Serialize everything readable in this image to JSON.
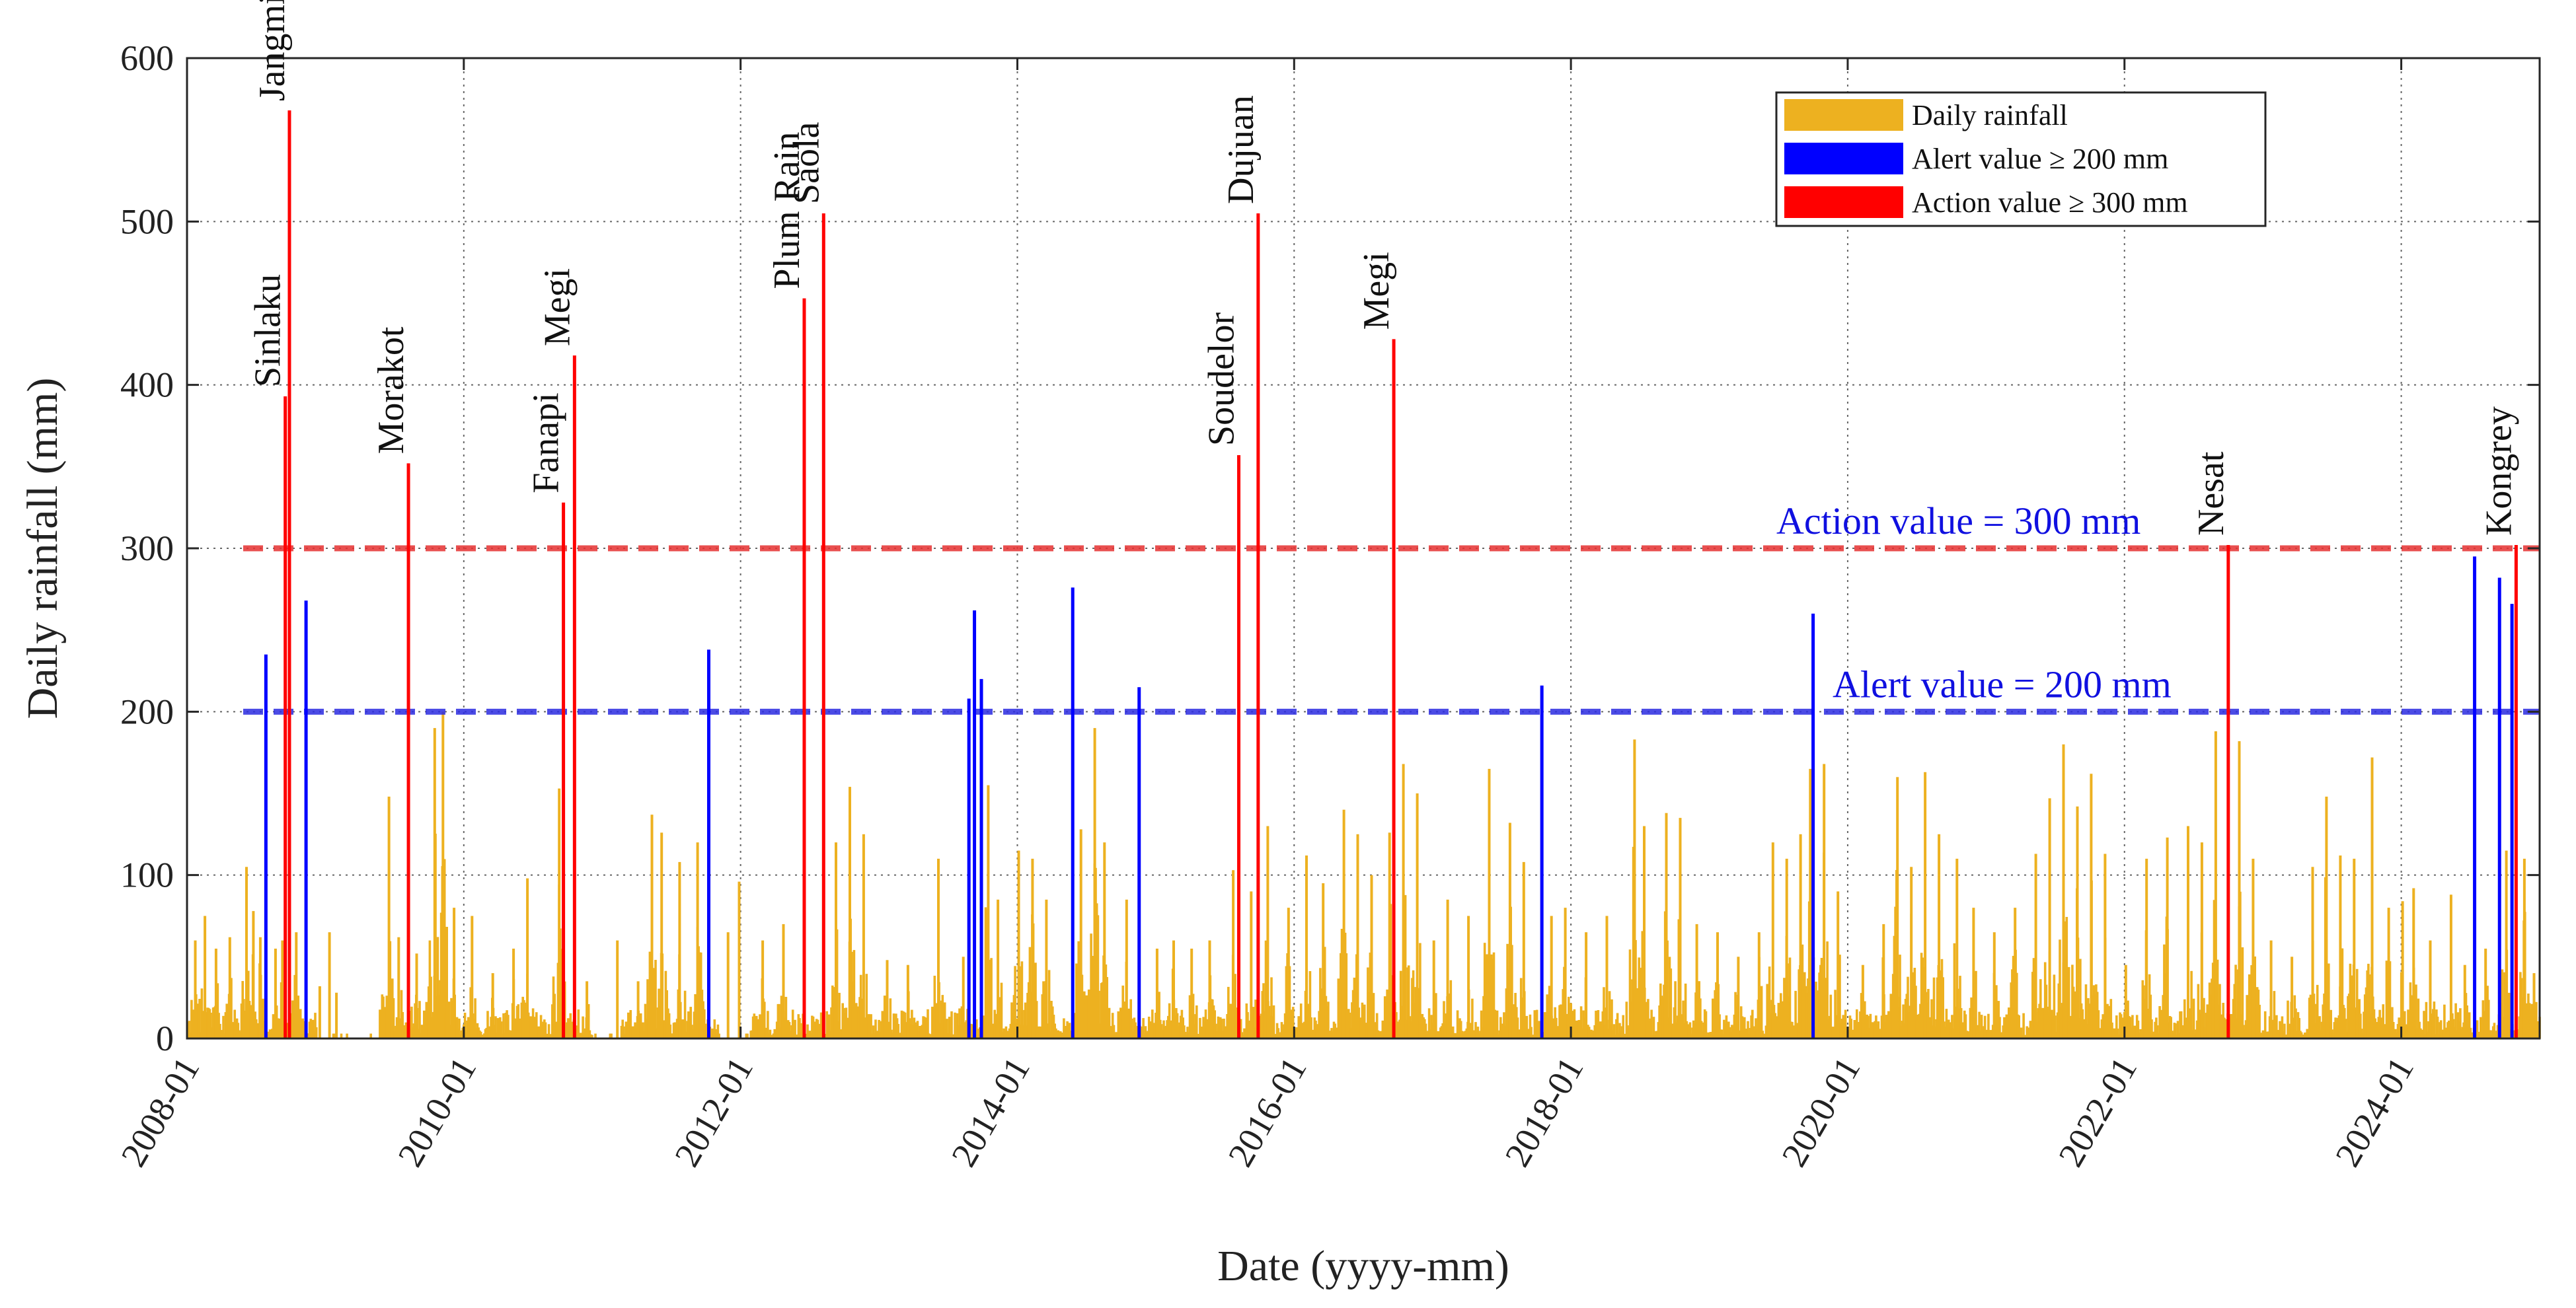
{
  "chart_data": {
    "type": "bar",
    "title": "",
    "xlabel": "Date (yyyy-mm)",
    "ylabel": "Daily rainfall (mm)",
    "xlim": [
      "2008-01",
      "2024-12"
    ],
    "ylim": [
      0,
      600
    ],
    "grid": true,
    "legend_position": "top-right",
    "x_ticks": [
      "2008-01",
      "2010-01",
      "2012-01",
      "2014-01",
      "2016-01",
      "2018-01",
      "2020-01",
      "2022-01",
      "2024-01"
    ],
    "y_ticks": [
      0,
      100,
      200,
      300,
      400,
      500,
      600
    ],
    "colors": {
      "daily": "#EDB120",
      "alert": "#0000FF",
      "action": "#FF0000"
    },
    "legend": [
      {
        "label": "Daily rainfall",
        "color": "#EDB120"
      },
      {
        "label": "Alert value ≥ 200 mm",
        "color": "#0000FF"
      },
      {
        "label": "Action value ≥ 300 mm",
        "color": "#FF0000"
      }
    ],
    "thresholds": [
      {
        "name": "alert",
        "value": 200,
        "label": "Alert value = 200 mm",
        "color": "#2B2BE0"
      },
      {
        "name": "action",
        "value": 300,
        "label": "Action value = 300 mm",
        "color": "#E53030"
      }
    ],
    "action_events": [
      {
        "date": 2008.71,
        "value": 393,
        "name": "Sinlaku"
      },
      {
        "date": 2008.74,
        "value": 568,
        "name": "Jangmi"
      },
      {
        "date": 2009.6,
        "value": 352,
        "name": "Morakot"
      },
      {
        "date": 2010.72,
        "value": 328,
        "name": "Fanapi"
      },
      {
        "date": 2010.8,
        "value": 418,
        "name": "Megi"
      },
      {
        "date": 2012.46,
        "value": 453,
        "name": "Plum Rain"
      },
      {
        "date": 2012.6,
        "value": 505,
        "name": "Saola"
      },
      {
        "date": 2015.6,
        "value": 357,
        "name": "Soudelor"
      },
      {
        "date": 2015.74,
        "value": 505,
        "name": "Dujuan"
      },
      {
        "date": 2016.72,
        "value": 428,
        "name": "Megi"
      },
      {
        "date": 2022.75,
        "value": 302,
        "name": "Nesat"
      },
      {
        "date": 2024.83,
        "value": 302,
        "name": "Kongrey"
      }
    ],
    "alert_events": [
      {
        "date": 2008.57,
        "value": 235
      },
      {
        "date": 2008.86,
        "value": 268
      },
      {
        "date": 2011.77,
        "value": 238
      },
      {
        "date": 2013.65,
        "value": 208
      },
      {
        "date": 2013.69,
        "value": 262
      },
      {
        "date": 2013.74,
        "value": 220
      },
      {
        "date": 2014.4,
        "value": 276
      },
      {
        "date": 2014.88,
        "value": 215
      },
      {
        "date": 2017.79,
        "value": 216
      },
      {
        "date": 2019.75,
        "value": 260
      },
      {
        "date": 2024.53,
        "value": 295
      },
      {
        "date": 2024.71,
        "value": 282
      },
      {
        "date": 2024.8,
        "value": 266
      }
    ],
    "daily_rainfall_peaks": [
      {
        "date": 2008.05,
        "value": 60
      },
      {
        "date": 2008.12,
        "value": 75
      },
      {
        "date": 2008.2,
        "value": 55
      },
      {
        "date": 2008.3,
        "value": 62
      },
      {
        "date": 2008.42,
        "value": 105
      },
      {
        "date": 2008.47,
        "value": 78
      },
      {
        "date": 2008.52,
        "value": 62
      },
      {
        "date": 2008.63,
        "value": 55
      },
      {
        "date": 2008.68,
        "value": 60
      },
      {
        "date": 2008.78,
        "value": 65
      },
      {
        "date": 2008.95,
        "value": 32
      },
      {
        "date": 2009.02,
        "value": 65
      },
      {
        "date": 2009.07,
        "value": 28
      },
      {
        "date": 2009.45,
        "value": 148
      },
      {
        "date": 2009.52,
        "value": 62
      },
      {
        "date": 2009.65,
        "value": 52
      },
      {
        "date": 2009.78,
        "value": 190
      },
      {
        "date": 2009.84,
        "value": 200
      },
      {
        "date": 2009.92,
        "value": 80
      },
      {
        "date": 2010.05,
        "value": 75
      },
      {
        "date": 2010.2,
        "value": 40
      },
      {
        "date": 2010.35,
        "value": 55
      },
      {
        "date": 2010.45,
        "value": 98
      },
      {
        "date": 2010.68,
        "value": 153
      },
      {
        "date": 2010.88,
        "value": 35
      },
      {
        "date": 2011.1,
        "value": 60
      },
      {
        "date": 2011.25,
        "value": 35
      },
      {
        "date": 2011.35,
        "value": 137
      },
      {
        "date": 2011.42,
        "value": 126
      },
      {
        "date": 2011.55,
        "value": 108
      },
      {
        "date": 2011.68,
        "value": 120
      },
      {
        "date": 2011.9,
        "value": 65
      },
      {
        "date": 2011.98,
        "value": 96
      },
      {
        "date": 2012.15,
        "value": 60
      },
      {
        "date": 2012.3,
        "value": 70
      },
      {
        "date": 2012.68,
        "value": 120
      },
      {
        "date": 2012.78,
        "value": 154
      },
      {
        "date": 2012.88,
        "value": 125
      },
      {
        "date": 2013.05,
        "value": 48
      },
      {
        "date": 2013.2,
        "value": 45
      },
      {
        "date": 2013.42,
        "value": 110
      },
      {
        "date": 2013.6,
        "value": 50
      },
      {
        "date": 2013.78,
        "value": 155
      },
      {
        "date": 2013.85,
        "value": 85
      },
      {
        "date": 2014.0,
        "value": 115
      },
      {
        "date": 2014.1,
        "value": 110
      },
      {
        "date": 2014.2,
        "value": 85
      },
      {
        "date": 2014.45,
        "value": 128
      },
      {
        "date": 2014.55,
        "value": 190
      },
      {
        "date": 2014.62,
        "value": 120
      },
      {
        "date": 2014.78,
        "value": 85
      },
      {
        "date": 2015.0,
        "value": 55
      },
      {
        "date": 2015.12,
        "value": 60
      },
      {
        "date": 2015.25,
        "value": 55
      },
      {
        "date": 2015.38,
        "value": 60
      },
      {
        "date": 2015.55,
        "value": 103
      },
      {
        "date": 2015.68,
        "value": 90
      },
      {
        "date": 2015.8,
        "value": 130
      },
      {
        "date": 2015.95,
        "value": 80
      },
      {
        "date": 2016.08,
        "value": 112
      },
      {
        "date": 2016.2,
        "value": 95
      },
      {
        "date": 2016.35,
        "value": 140
      },
      {
        "date": 2016.45,
        "value": 125
      },
      {
        "date": 2016.55,
        "value": 100
      },
      {
        "date": 2016.68,
        "value": 126
      },
      {
        "date": 2016.78,
        "value": 168
      },
      {
        "date": 2016.88,
        "value": 150
      },
      {
        "date": 2017.0,
        "value": 60
      },
      {
        "date": 2017.1,
        "value": 85
      },
      {
        "date": 2017.25,
        "value": 75
      },
      {
        "date": 2017.4,
        "value": 165
      },
      {
        "date": 2017.55,
        "value": 132
      },
      {
        "date": 2017.65,
        "value": 108
      },
      {
        "date": 2017.85,
        "value": 75
      },
      {
        "date": 2017.95,
        "value": 80
      },
      {
        "date": 2018.1,
        "value": 65
      },
      {
        "date": 2018.25,
        "value": 75
      },
      {
        "date": 2018.45,
        "value": 183
      },
      {
        "date": 2018.52,
        "value": 130
      },
      {
        "date": 2018.68,
        "value": 138
      },
      {
        "date": 2018.78,
        "value": 135
      },
      {
        "date": 2018.9,
        "value": 70
      },
      {
        "date": 2019.05,
        "value": 65
      },
      {
        "date": 2019.2,
        "value": 50
      },
      {
        "date": 2019.35,
        "value": 65
      },
      {
        "date": 2019.45,
        "value": 120
      },
      {
        "date": 2019.55,
        "value": 110
      },
      {
        "date": 2019.65,
        "value": 125
      },
      {
        "date": 2019.72,
        "value": 165
      },
      {
        "date": 2019.82,
        "value": 168
      },
      {
        "date": 2019.92,
        "value": 90
      },
      {
        "date": 2020.1,
        "value": 45
      },
      {
        "date": 2020.25,
        "value": 70
      },
      {
        "date": 2020.35,
        "value": 160
      },
      {
        "date": 2020.45,
        "value": 105
      },
      {
        "date": 2020.55,
        "value": 163
      },
      {
        "date": 2020.65,
        "value": 125
      },
      {
        "date": 2020.78,
        "value": 110
      },
      {
        "date": 2020.9,
        "value": 80
      },
      {
        "date": 2021.05,
        "value": 65
      },
      {
        "date": 2021.2,
        "value": 80
      },
      {
        "date": 2021.35,
        "value": 113
      },
      {
        "date": 2021.45,
        "value": 147
      },
      {
        "date": 2021.55,
        "value": 180
      },
      {
        "date": 2021.65,
        "value": 142
      },
      {
        "date": 2021.75,
        "value": 162
      },
      {
        "date": 2021.85,
        "value": 113
      },
      {
        "date": 2022.0,
        "value": 45
      },
      {
        "date": 2022.15,
        "value": 110
      },
      {
        "date": 2022.3,
        "value": 123
      },
      {
        "date": 2022.45,
        "value": 130
      },
      {
        "date": 2022.55,
        "value": 120
      },
      {
        "date": 2022.65,
        "value": 188
      },
      {
        "date": 2022.82,
        "value": 182
      },
      {
        "date": 2022.92,
        "value": 110
      },
      {
        "date": 2023.05,
        "value": 60
      },
      {
        "date": 2023.2,
        "value": 50
      },
      {
        "date": 2023.35,
        "value": 105
      },
      {
        "date": 2023.45,
        "value": 148
      },
      {
        "date": 2023.55,
        "value": 112
      },
      {
        "date": 2023.65,
        "value": 110
      },
      {
        "date": 2023.78,
        "value": 172
      },
      {
        "date": 2023.9,
        "value": 80
      },
      {
        "date": 2024.0,
        "value": 84
      },
      {
        "date": 2024.08,
        "value": 92
      },
      {
        "date": 2024.2,
        "value": 60
      },
      {
        "date": 2024.35,
        "value": 88
      },
      {
        "date": 2024.45,
        "value": 45
      },
      {
        "date": 2024.6,
        "value": 55
      },
      {
        "date": 2024.75,
        "value": 115
      },
      {
        "date": 2024.88,
        "value": 110
      },
      {
        "date": 2024.95,
        "value": 40
      }
    ]
  }
}
